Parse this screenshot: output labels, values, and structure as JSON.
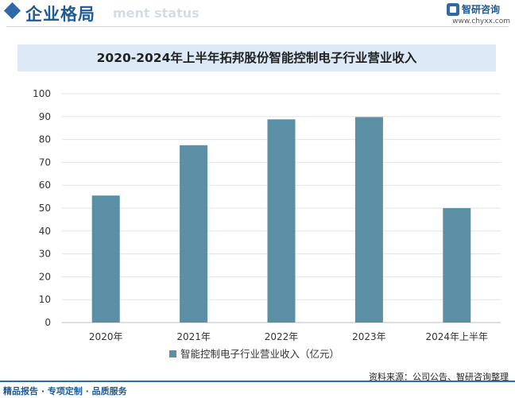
{
  "header": {
    "title": "企业格局",
    "subtitle": "ment status"
  },
  "logo": {
    "name": "智研咨询",
    "url": "www.chyxx.com"
  },
  "chart_data": {
    "type": "bar",
    "title": "2020-2024年上半年拓邦股份智能控制电子行业营业收入",
    "categories": [
      "2020年",
      "2021年",
      "2022年",
      "2023年",
      "2024年上半年"
    ],
    "series": [
      {
        "name": "智能控制电子行业营业收入（亿元）",
        "values": [
          55.5,
          77.5,
          88.8,
          89.8,
          50.0
        ]
      }
    ],
    "ylim": [
      0,
      100
    ],
    "yticks": [
      "0",
      "10",
      "20",
      "30",
      "40",
      "50",
      "60",
      "70",
      "80",
      "90",
      "100"
    ],
    "grid": true,
    "legend_position": "bottom",
    "bar_color": "#5b8fa6"
  },
  "footer": {
    "left": "精品报告 · 专项定制 · 品质服务",
    "source": "资料来源：公司公告、智研咨询整理"
  }
}
